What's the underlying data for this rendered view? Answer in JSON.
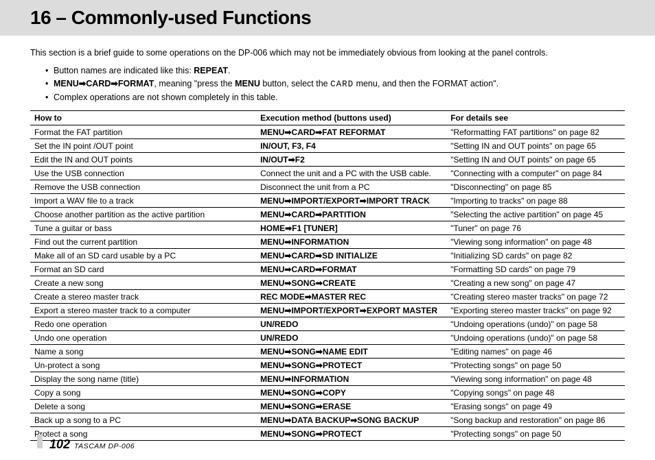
{
  "header": {
    "title": "16 – Commonly-used Functions"
  },
  "intro": "This section is a brief guide to some operations on the DP-006 which may not be immediately obvious from looking at the panel controls.",
  "bullets": {
    "b0_pre": "Button names are indicated like this: ",
    "b0_bold": "REPEAT",
    "b0_post": ".",
    "b1_seq": "MENU➡CARD➡FORMAT",
    "b1_mid1": ", meaning \"press the ",
    "b1_bold2": "MENU",
    "b1_mid2": " button, select the ",
    "b1_lcd": "CARD",
    "b1_mid3": " menu, and then the FORMAT action\".",
    "b2": "Complex operations are not shown completely in this table."
  },
  "table": {
    "headers": {
      "h0": "How to",
      "h1": "Execution method (buttons used)",
      "h2": "For details see"
    },
    "rows": [
      {
        "howto": "Format the FAT partition",
        "exec": "MENU➡CARD➡FAT REFORMAT",
        "see": "\"Reformatting FAT partitions\" on page 82",
        "bold": true
      },
      {
        "howto": "Set the IN point /OUT point",
        "exec": "IN/OUT, F3, F4",
        "see": "\"Setting IN and OUT points\" on page 65",
        "bold": true
      },
      {
        "howto": "Edit the IN and OUT points",
        "exec": "IN/OUT➡F2",
        "see": "\"Setting IN and OUT points\" on page 65",
        "bold": true
      },
      {
        "howto": "Use the USB connection",
        "exec": "Connect the unit and a PC with the USB cable.",
        "see": "\"Connecting with a computer\" on page 84",
        "bold": false
      },
      {
        "howto": "Remove the USB connection",
        "exec": "Disconnect the unit from a PC",
        "see": "\"Disconnecting\" on page 85",
        "bold": false
      },
      {
        "howto": "Import a WAV file to a track",
        "exec": "MENU➡IMPORT/EXPORT➡IMPORT TRACK",
        "see": "\"Importing to tracks\" on page 88",
        "bold": true
      },
      {
        "howto": "Choose another partition as the active partition",
        "exec": "MENU➡CARD➡PARTITION",
        "see": "\"Selecting the active partition\" on page 45",
        "bold": true
      },
      {
        "howto": "Tune a guitar or bass",
        "exec": "HOME➡F1 [TUNER]",
        "see": "\"Tuner\" on page 76",
        "bold": true
      },
      {
        "howto": "Find out the current partition",
        "exec": "MENU➡INFORMATION",
        "see": "\"Viewing song information\" on page 48",
        "bold": true
      },
      {
        "howto": "Make all of an SD card usable by a PC",
        "exec": "MENU➡CARD➡SD INITIALIZE",
        "see": "\"Initializing SD cards\" on page 82",
        "bold": true
      },
      {
        "howto": "Format an SD card",
        "exec": "MENU➡CARD➡FORMAT",
        "see": "\"Formatting SD cards\" on page 79",
        "bold": true
      },
      {
        "howto": "Create a new song",
        "exec": "MENU➡SONG➡CREATE",
        "see": "\"Creating a new song\" on page 47",
        "bold": true
      },
      {
        "howto": "Create a stereo master track",
        "exec": "REC MODE➡MASTER REC",
        "see": "\"Creating stereo master tracks\" on page 72",
        "bold": true
      },
      {
        "howto": "Export a stereo master track to a computer",
        "exec": "MENU➡IMPORT/EXPORT➡EXPORT MASTER",
        "see": "\"Exporting stereo master tracks\" on page 92",
        "bold": true
      },
      {
        "howto": "Redo one operation",
        "exec": "UN/REDO",
        "see": "\"Undoing operations (undo)\" on page 58",
        "bold": true
      },
      {
        "howto": "Undo one operation",
        "exec": "UN/REDO",
        "see": "\"Undoing operations (undo)\" on page 58",
        "bold": true
      },
      {
        "howto": "Name a song",
        "exec": "MENU➡SONG➡NAME EDIT",
        "see": "\"Editing names\" on page 46",
        "bold": true
      },
      {
        "howto": "Un-protect a song",
        "exec": "MENU➡SONG➡PROTECT",
        "see": "\"Protecting songs\" on page 50",
        "bold": true
      },
      {
        "howto": "Display the song name (title)",
        "exec": "MENU➡INFORMATION",
        "see": "\"Viewing song information\" on page 48",
        "bold": true
      },
      {
        "howto": "Copy a song",
        "exec": "MENU➡SONG➡COPY",
        "see": "\"Copying songs\" on page 48",
        "bold": true
      },
      {
        "howto": "Delete a song",
        "exec": "MENU➡SONG➡ERASE",
        "see": "\"Erasing songs\" on page 49",
        "bold": true
      },
      {
        "howto": "Back up a song to a PC",
        "exec": "MENU➡DATA BACKUP➡SONG BACKUP",
        "see": "\"Song backup and restoration\" on page 86",
        "bold": true
      },
      {
        "howto": "Protect a song",
        "exec": "MENU➡SONG➡PROTECT",
        "see": "\"Protecting songs\" on page 50",
        "bold": true
      }
    ]
  },
  "footer": {
    "page": "102",
    "model": "TASCAM  DP-006"
  }
}
